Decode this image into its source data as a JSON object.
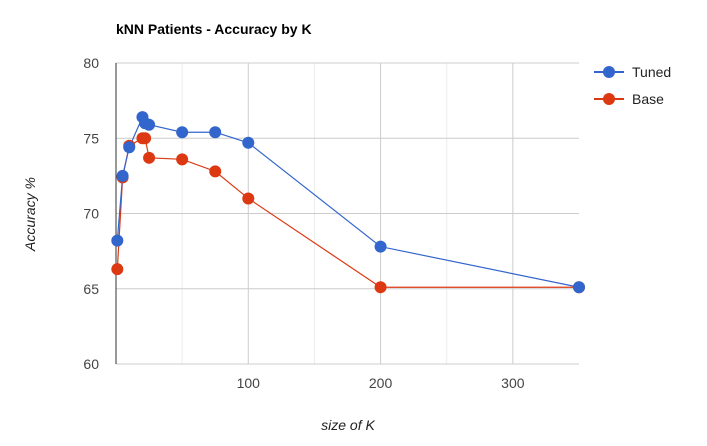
{
  "chart_data": {
    "type": "line",
    "title": "kNN Patients - Accuracy by K",
    "xlabel": "size of K",
    "ylabel": "Accuracy %",
    "xlim": [
      0,
      350
    ],
    "ylim": [
      60,
      80
    ],
    "x_ticks": [
      100,
      200,
      300
    ],
    "y_ticks": [
      60,
      65,
      70,
      75,
      80
    ],
    "x_minor_gridlines": [
      50,
      150,
      250
    ],
    "grid": true,
    "legend_position": "right",
    "series": [
      {
        "name": "Tuned",
        "color": "#3366cc",
        "x": [
          1,
          5,
          10,
          20,
          22,
          25,
          50,
          75,
          100,
          200,
          350
        ],
        "y": [
          68.2,
          72.5,
          74.4,
          76.4,
          76.0,
          75.9,
          75.4,
          75.4,
          74.7,
          67.8,
          65.1
        ]
      },
      {
        "name": "Base",
        "color": "#dc3912",
        "x": [
          1,
          5,
          10,
          20,
          22,
          25,
          50,
          75,
          100,
          200,
          350
        ],
        "y": [
          66.3,
          72.4,
          74.5,
          75.0,
          75.0,
          73.7,
          73.6,
          72.8,
          71.0,
          65.1,
          65.1
        ]
      }
    ]
  }
}
